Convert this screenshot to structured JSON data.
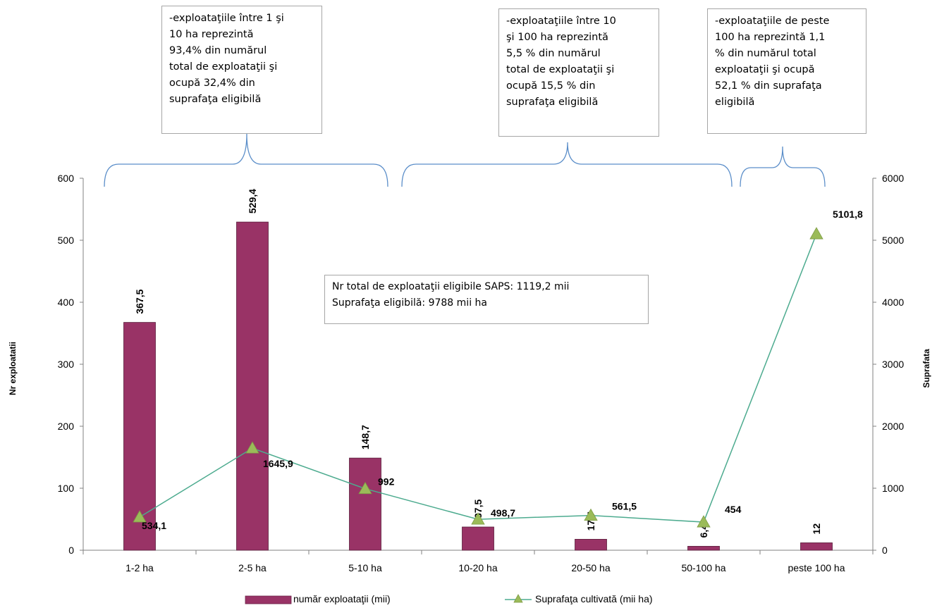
{
  "chart_data": {
    "type": "bar",
    "categories": [
      "1-2 ha",
      "2-5 ha",
      "5-10 ha",
      "10-20 ha",
      "20-50 ha",
      "50-100 ha",
      "peste 100 ha"
    ],
    "series": [
      {
        "name": "număr exploataţii (mii)",
        "type": "bar",
        "axis": "left",
        "values": [
          367.5,
          529.4,
          148.7,
          37.5,
          17.7,
          6.4,
          12
        ],
        "labels": [
          "367,5",
          "529,4",
          "148,7",
          "37,5",
          "17,7",
          "6,4",
          "12"
        ],
        "color": "#993366"
      },
      {
        "name": "Suprafaţa cultivată (mii ha)",
        "type": "line",
        "axis": "right",
        "values": [
          534.1,
          1645.9,
          992,
          498.7,
          561.5,
          454,
          5101.8
        ],
        "labels": [
          "534,1",
          "1645,9",
          "992",
          "498,7",
          "561,5",
          "454",
          "5101,8"
        ],
        "color": "#9bbb59"
      }
    ],
    "ylabel": "Nr exploatatii",
    "y2label": "Suprafata",
    "ylim": [
      0,
      600
    ],
    "y2lim": [
      0,
      6000
    ],
    "yticks": [
      "0",
      "100",
      "200",
      "300",
      "400",
      "500",
      "600"
    ],
    "y2ticks": [
      "0",
      "1000",
      "2000",
      "3000",
      "4000",
      "5000",
      "6000"
    ],
    "grid": false,
    "legend": "bottom"
  },
  "callouts": [
    [
      "-exploataţiile între 1 şi",
      "10 ha reprezintă",
      "93,4% din numărul",
      "total  de exploataţii şi",
      "ocupă 32,4% din",
      "suprafaţa eligibilă"
    ],
    [
      "-exploataţiile între 10",
      "şi 100  ha reprezintă",
      "5,5 % din numărul",
      "total de exploataţii şi",
      "ocupă 15,5 % din",
      "suprafaţa eligibilă"
    ],
    [
      "-exploataţiile de peste",
      "100 ha reprezintă 1,1",
      "% din numărul total",
      "exploataţii şi ocupă",
      "52,1  % din suprafaţa",
      "eligibilă"
    ]
  ],
  "summary": {
    "line1": "Nr total de exploataţii eligibile SAPS: 1119,2 mii",
    "line2": "Suprafaţa eligibilă:   9788   mii ha"
  }
}
